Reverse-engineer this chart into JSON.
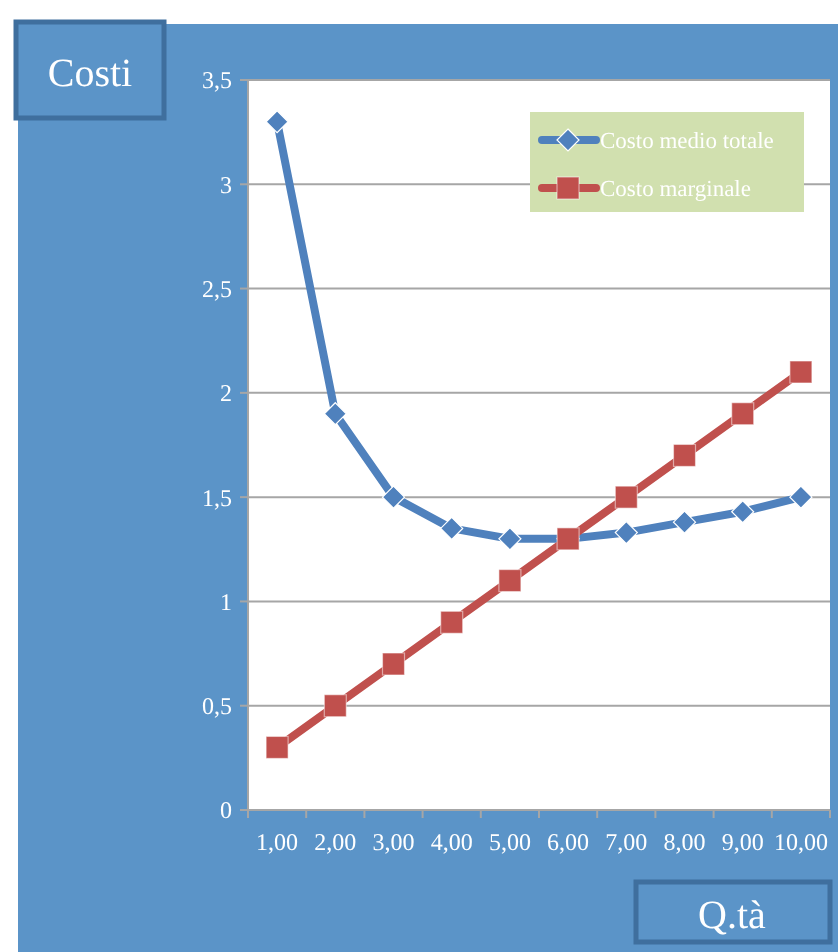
{
  "chart_data": {
    "type": "line",
    "xlabel": "Q.tà",
    "ylabel": "Costi",
    "categories": [
      "1,00",
      "2,00",
      "3,00",
      "4,00",
      "5,00",
      "6,00",
      "7,00",
      "8,00",
      "9,00",
      "10,00"
    ],
    "series": [
      {
        "name": "Costo medio totale",
        "color": "#4f81bd",
        "marker": "diamond",
        "values": [
          3.3,
          1.9,
          1.5,
          1.35,
          1.3,
          1.3,
          1.33,
          1.38,
          1.43,
          1.5
        ]
      },
      {
        "name": "Costo marginale",
        "color": "#c0504d",
        "marker": "square",
        "values": [
          0.3,
          0.5,
          0.7,
          0.9,
          1.1,
          1.3,
          1.5,
          1.7,
          1.9,
          2.1
        ]
      }
    ],
    "ylim": [
      0,
      3.5
    ],
    "yticks": [
      0,
      {
        "value": 0.5,
        "label": "0,5"
      },
      1,
      {
        "value": 1.5,
        "label": "1,5"
      },
      2,
      {
        "value": 2.5,
        "label": "2,5"
      },
      3,
      {
        "value": 3.5,
        "label": "3,5"
      }
    ],
    "grid": "y",
    "legend": "top right"
  }
}
